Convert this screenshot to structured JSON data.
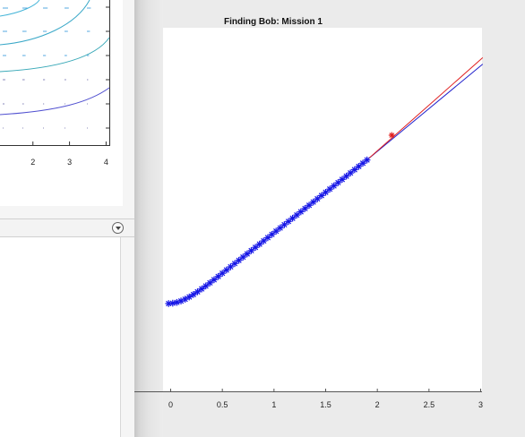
{
  "left_pane": {
    "contour_plot": {
      "x_tick_labels": [
        "2",
        "3",
        "4"
      ],
      "x_tick_values": [
        2,
        3,
        4
      ],
      "x_range": [
        1.1,
        4.1
      ]
    },
    "lower_panel": {
      "dropdown_icon": "circle-chevron-down-icon"
    }
  },
  "chart_data": {
    "type": "line",
    "title": "Finding Bob: Mission 1",
    "xlim": [
      -0.1,
      3
    ],
    "x_ticks": [
      0,
      0.5,
      1,
      1.5,
      2,
      2.5,
      3
    ],
    "x_tick_labels": [
      "0",
      "0.5",
      "1",
      "1.5",
      "2",
      "2.5",
      "3"
    ],
    "series": [
      {
        "marker": "*",
        "color": "#1414e6",
        "x": [
          -0.02,
          0.02,
          0.06,
          0.1,
          0.14,
          0.18,
          0.22,
          0.26,
          0.3,
          0.34,
          0.38,
          0.42,
          0.46,
          0.5,
          0.54,
          0.58,
          0.62,
          0.66,
          0.7,
          0.74,
          0.78,
          0.82,
          0.86,
          0.9,
          0.94,
          0.98,
          1.02,
          1.06,
          1.1,
          1.14,
          1.18,
          1.22,
          1.26,
          1.3,
          1.34,
          1.38,
          1.42,
          1.46,
          1.5,
          1.54,
          1.58,
          1.62,
          1.66,
          1.7,
          1.74,
          1.78,
          1.82,
          1.86,
          1.9
        ],
        "y": [
          0.0,
          0.003,
          0.009,
          0.02,
          0.034,
          0.051,
          0.07,
          0.091,
          0.113,
          0.136,
          0.16,
          0.184,
          0.209,
          0.234,
          0.259,
          0.284,
          0.309,
          0.334,
          0.359,
          0.384,
          0.409,
          0.434,
          0.459,
          0.484,
          0.509,
          0.534,
          0.559,
          0.584,
          0.609,
          0.634,
          0.659,
          0.684,
          0.709,
          0.734,
          0.759,
          0.784,
          0.809,
          0.834,
          0.859,
          0.884,
          0.909,
          0.934,
          0.959,
          0.984,
          1.009,
          1.034,
          1.059,
          1.084,
          1.109
        ]
      },
      {
        "marker": "none",
        "color": "#2020cc",
        "x": [
          1.9,
          3.02
        ],
        "y": [
          1.109,
          1.849
        ]
      },
      {
        "marker": "none",
        "color": "#e02020",
        "x": [
          1.9,
          3.02
        ],
        "y": [
          1.109,
          1.899
        ]
      },
      {
        "marker": "*",
        "color": "#e02020",
        "x": [
          2.14
        ],
        "y": [
          1.3
        ]
      }
    ]
  }
}
